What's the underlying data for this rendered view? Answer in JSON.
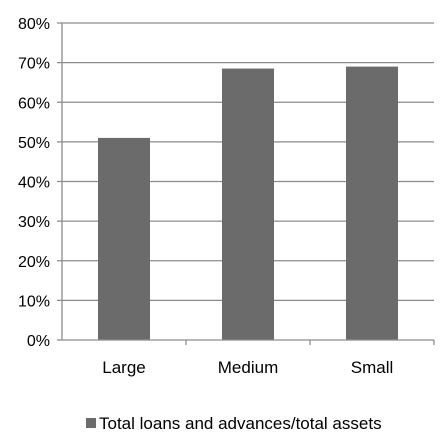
{
  "chart_data": {
    "type": "bar",
    "categories": [
      "Large",
      "Medium",
      "Small"
    ],
    "series": [
      {
        "name": "Total loans and advances/total assets",
        "values": [
          51,
          68.5,
          69
        ]
      }
    ],
    "y_ticks": [
      "0%",
      "10%",
      "20%",
      "30%",
      "40%",
      "50%",
      "60%",
      "70%",
      "80%"
    ],
    "ylim": [
      0,
      80
    ],
    "y_unit": "%",
    "grid": "horizontal",
    "legend_position": "bottom",
    "colors": {
      "bar": "#6b6b6b",
      "grid": "#8c8c8c",
      "axis": "#8c8c8c"
    }
  }
}
